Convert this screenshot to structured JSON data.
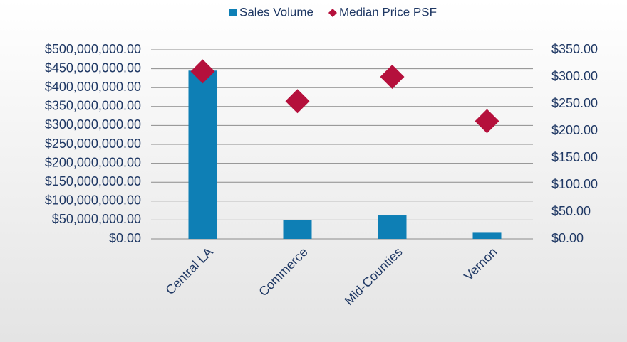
{
  "chart_data": {
    "type": "bar",
    "categories": [
      "Central LA",
      "Commerce",
      "Mid-Counties",
      "Vernon"
    ],
    "series": [
      {
        "name": "Sales Volume",
        "type": "bar",
        "color": "#0e7fb5",
        "values": [
          445000000,
          50000000,
          62000000,
          18000000
        ]
      },
      {
        "name": "Median Price PSF",
        "type": "scatter",
        "marker": "diamond",
        "color": "#b5103c",
        "axis": "y2",
        "values": [
          310,
          255,
          300,
          218
        ]
      }
    ],
    "ylim": [
      0,
      500000000
    ],
    "yticks": [
      {
        "value": 0,
        "label": "$0.00"
      },
      {
        "value": 50000000,
        "label": "$50,000,000.00"
      },
      {
        "value": 100000000,
        "label": "$100,000,000.00"
      },
      {
        "value": 150000000,
        "label": "$150,000,000.00"
      },
      {
        "value": 200000000,
        "label": "$200,000,000.00"
      },
      {
        "value": 250000000,
        "label": "$250,000,000.00"
      },
      {
        "value": 300000000,
        "label": "$300,000,000.00"
      },
      {
        "value": 350000000,
        "label": "$350,000,000.00"
      },
      {
        "value": 400000000,
        "label": "$400,000,000.00"
      },
      {
        "value": 450000000,
        "label": "$450,000,000.00"
      },
      {
        "value": 500000000,
        "label": "$500,000,000.00"
      }
    ],
    "y2lim": [
      0,
      350
    ],
    "y2ticks": [
      {
        "value": 0,
        "label": "$0.00"
      },
      {
        "value": 50,
        "label": "$50.00"
      },
      {
        "value": 100,
        "label": "$100.00"
      },
      {
        "value": 150,
        "label": "$150.00"
      },
      {
        "value": 200,
        "label": "$200.00"
      },
      {
        "value": 250,
        "label": "$250.00"
      },
      {
        "value": 300,
        "label": "$300.00"
      },
      {
        "value": 350,
        "label": "$350.00"
      }
    ],
    "grid": true,
    "legend": "top"
  }
}
